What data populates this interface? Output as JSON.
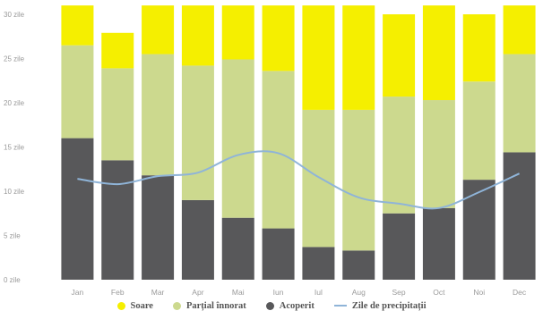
{
  "chart_data": {
    "type": "bar",
    "stacked": true,
    "categories": [
      "Jan",
      "Feb",
      "Mar",
      "Apr",
      "Mai",
      "Iun",
      "Iul",
      "Aug",
      "Sep",
      "Oct",
      "Noi",
      "Dec"
    ],
    "ylim": [
      0,
      30
    ],
    "yticks": [
      0,
      5,
      10,
      15,
      20,
      25,
      30
    ],
    "ytick_labels": [
      "0 zile",
      "5 zile",
      "10 zile",
      "15 zile",
      "20 zile",
      "25 zile",
      "30 zile"
    ],
    "series": [
      {
        "name": "Acoperit",
        "color": "#58585a",
        "values": [
          16,
          13.5,
          11.8,
          9,
          7,
          5.8,
          3.7,
          3.3,
          7.5,
          8.1,
          11.3,
          14.4
        ]
      },
      {
        "name": "Parțial înnorat",
        "color": "#ccd98e",
        "values": [
          10.5,
          10.4,
          13.7,
          15.2,
          17.9,
          17.8,
          15.5,
          15.9,
          13.2,
          12.2,
          11.1,
          11.1
        ]
      },
      {
        "name": "Soare",
        "color": "#f5ef00",
        "values": [
          4.5,
          4,
          5.5,
          6.8,
          6.1,
          7.4,
          11.8,
          11.8,
          9.3,
          10.7,
          7.6,
          5.5
        ]
      }
    ],
    "line": {
      "name": "Zile de precipitații",
      "color": "#8fb4d8",
      "values": [
        11.4,
        10.8,
        11.7,
        12.1,
        14.1,
        14.3,
        11.6,
        9.3,
        8.6,
        8.1,
        9.9,
        12
      ]
    },
    "legend": {
      "position": "bottom",
      "items": [
        {
          "label": "Soare",
          "color": "#f5ef00",
          "kind": "dot"
        },
        {
          "label": "Parțial înnorat",
          "color": "#ccd98e",
          "kind": "dot"
        },
        {
          "label": "Acoperit",
          "color": "#58585a",
          "kind": "dot"
        },
        {
          "label": "Zile de precipitații",
          "color": "#8fb4d8",
          "kind": "line"
        }
      ]
    },
    "grid": false,
    "title": "",
    "xlabel": "",
    "ylabel": ""
  }
}
